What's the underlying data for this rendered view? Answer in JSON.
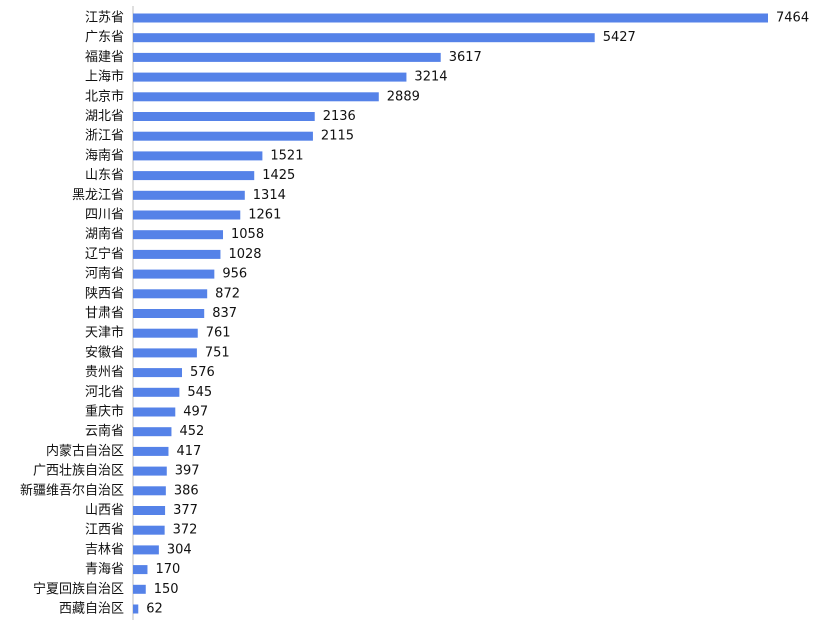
{
  "chart_data": {
    "type": "bar",
    "orientation": "horizontal",
    "color": "#5582e8",
    "categories": [
      "江苏省",
      "广东省",
      "福建省",
      "上海市",
      "北京市",
      "湖北省",
      "浙江省",
      "海南省",
      "山东省",
      "黑龙江省",
      "四川省",
      "湖南省",
      "辽宁省",
      "河南省",
      "陕西省",
      "甘肃省",
      "天津市",
      "安徽省",
      "贵州省",
      "河北省",
      "重庆市",
      "云南省",
      "内蒙古自治区",
      "广西壮族自治区",
      "新疆维吾尔自治区",
      "山西省",
      "江西省",
      "吉林省",
      "青海省",
      "宁夏回族自治区",
      "西藏自治区"
    ],
    "values": [
      7464,
      5427,
      3617,
      3214,
      2889,
      2136,
      2115,
      1521,
      1425,
      1314,
      1261,
      1058,
      1028,
      956,
      872,
      837,
      761,
      751,
      576,
      545,
      497,
      452,
      417,
      397,
      386,
      377,
      372,
      304,
      170,
      150,
      62
    ]
  }
}
